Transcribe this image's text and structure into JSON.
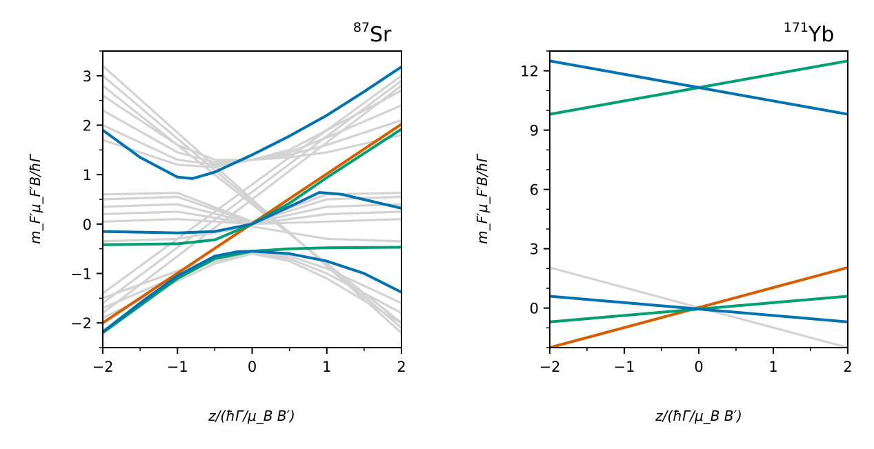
{
  "chart_data": [
    {
      "type": "line",
      "title_superscript": "87",
      "title_element": "Sr",
      "xlabel": "z/(ħΓ/μ_B B′)",
      "ylabel": "m_F′μ_F′B/ħΓ",
      "xlim": [
        -2,
        2
      ],
      "ylim": [
        -2.5,
        3.5
      ],
      "xticks": [
        -2,
        -1,
        0,
        1,
        2
      ],
      "xtick_labels": [
        "−2",
        "−1",
        "0",
        "1",
        "2"
      ],
      "yticks": [
        -2,
        -1,
        0,
        1,
        2,
        3
      ],
      "ytick_labels": [
        "−2",
        "−1",
        "0",
        "1",
        "2",
        "3"
      ],
      "series": [
        {
          "name": "grey-down-1",
          "color": "#d3d3d3",
          "x": [
            -2,
            2
          ],
          "y": [
            3.2,
            -2.2
          ]
        },
        {
          "name": "grey-down-2",
          "color": "#d3d3d3",
          "x": [
            -2,
            2
          ],
          "y": [
            3.0,
            -2.1
          ]
        },
        {
          "name": "grey-down-3",
          "color": "#d3d3d3",
          "x": [
            -2,
            2
          ],
          "y": [
            2.8,
            -2.0
          ]
        },
        {
          "name": "grey-up-1",
          "color": "#d3d3d3",
          "x": [
            -2,
            2
          ],
          "y": [
            -1.4,
            3.0
          ]
        },
        {
          "name": "grey-up-2",
          "color": "#d3d3d3",
          "x": [
            -2,
            2
          ],
          "y": [
            -1.6,
            2.9
          ]
        },
        {
          "name": "grey-up-3",
          "color": "#d3d3d3",
          "x": [
            -2,
            2
          ],
          "y": [
            -1.8,
            2.8
          ]
        },
        {
          "name": "grey-upper-1",
          "color": "#d3d3d3",
          "x": [
            -2,
            -1,
            -0.5,
            0,
            0.5,
            1,
            2
          ],
          "y": [
            2.6,
            1.6,
            1.3,
            1.3,
            1.5,
            1.9,
            2.7
          ]
        },
        {
          "name": "grey-upper-2",
          "color": "#d3d3d3",
          "x": [
            -2,
            -1,
            -0.5,
            0,
            0.5,
            1,
            2
          ],
          "y": [
            2.3,
            1.45,
            1.25,
            1.3,
            1.45,
            1.75,
            2.4
          ]
        },
        {
          "name": "grey-upper-3",
          "color": "#d3d3d3",
          "x": [
            -2,
            -1,
            -0.5,
            0,
            0.5,
            1,
            2
          ],
          "y": [
            2.0,
            1.3,
            1.2,
            1.3,
            1.4,
            1.6,
            2.1
          ]
        },
        {
          "name": "grey-upper-4",
          "color": "#d3d3d3",
          "x": [
            -2,
            -1,
            -0.5,
            0,
            0.5,
            1,
            2
          ],
          "y": [
            1.7,
            1.2,
            1.15,
            1.3,
            1.35,
            1.45,
            1.8
          ]
        },
        {
          "name": "grey-mid-1",
          "color": "#d3d3d3",
          "x": [
            -2,
            -1,
            0,
            1,
            2
          ],
          "y": [
            0.6,
            0.63,
            0.05,
            0.6,
            0.63
          ]
        },
        {
          "name": "grey-mid-2",
          "color": "#d3d3d3",
          "x": [
            -2,
            -1,
            0,
            1,
            2
          ],
          "y": [
            0.5,
            0.55,
            0.03,
            0.5,
            0.55
          ]
        },
        {
          "name": "grey-mid-3",
          "color": "#d3d3d3",
          "x": [
            -2,
            -1,
            0,
            1,
            2
          ],
          "y": [
            0.35,
            0.4,
            0.02,
            0.35,
            0.4
          ]
        },
        {
          "name": "grey-mid-4",
          "color": "#d3d3d3",
          "x": [
            -2,
            -1,
            0,
            1,
            2
          ],
          "y": [
            0.2,
            0.25,
            0.0,
            0.2,
            0.25
          ]
        },
        {
          "name": "grey-mid-5",
          "color": "#d3d3d3",
          "x": [
            -2,
            -1,
            0,
            1,
            2
          ],
          "y": [
            0.05,
            0.1,
            0.0,
            0.05,
            0.1
          ]
        },
        {
          "name": "grey-mid-6",
          "color": "#d3d3d3",
          "x": [
            -2,
            -1,
            0,
            1,
            2
          ],
          "y": [
            -0.35,
            -0.3,
            -0.05,
            -0.3,
            -0.35
          ]
        },
        {
          "name": "grey-lower-1",
          "color": "#d3d3d3",
          "x": [
            -2,
            -1,
            -0.5,
            0,
            0.5,
            1,
            2
          ],
          "y": [
            -1.5,
            -0.95,
            -0.7,
            -0.6,
            -0.65,
            -0.9,
            -1.6
          ]
        },
        {
          "name": "grey-lower-2",
          "color": "#d3d3d3",
          "x": [
            -2,
            -1,
            -0.5,
            0,
            0.5,
            1,
            2
          ],
          "y": [
            -1.7,
            -1.05,
            -0.75,
            -0.6,
            -0.7,
            -1.0,
            -1.8
          ]
        },
        {
          "name": "grey-lower-3",
          "color": "#d3d3d3",
          "x": [
            -2,
            -1,
            -0.5,
            0,
            0.5,
            1,
            2
          ],
          "y": [
            -1.9,
            -1.15,
            -0.8,
            -0.6,
            -0.75,
            -1.1,
            -2.0
          ]
        },
        {
          "name": "orange",
          "color": "#d55e00",
          "x": [
            -2,
            2
          ],
          "y": [
            -2.0,
            2.02
          ]
        },
        {
          "name": "green-diagonal",
          "color": "#009e73",
          "x": [
            -2,
            -1,
            -0.5,
            0,
            0.5,
            1,
            2
          ],
          "y": [
            -0.42,
            -0.4,
            -0.32,
            0.0,
            0.42,
            0.94,
            1.92
          ]
        },
        {
          "name": "green-lower",
          "color": "#009e73",
          "x": [
            -2,
            -1,
            -0.5,
            0,
            0.5,
            1,
            2
          ],
          "y": [
            -2.2,
            -1.1,
            -0.7,
            -0.55,
            -0.5,
            -0.48,
            -0.47
          ]
        },
        {
          "name": "blue-upper",
          "color": "#0072b2",
          "x": [
            -2,
            -1.5,
            -1.0,
            -0.8,
            -0.5,
            0,
            0.5,
            1,
            1.5,
            2
          ],
          "y": [
            1.9,
            1.35,
            0.95,
            0.92,
            1.05,
            1.4,
            1.78,
            2.2,
            2.68,
            3.18
          ]
        },
        {
          "name": "blue-middle",
          "color": "#0072b2",
          "x": [
            -2,
            -1,
            -0.5,
            0,
            0.5,
            0.9,
            1.2,
            2
          ],
          "y": [
            -0.15,
            -0.18,
            -0.15,
            0.0,
            0.35,
            0.64,
            0.6,
            0.32
          ]
        },
        {
          "name": "blue-lower",
          "color": "#0072b2",
          "x": [
            -2,
            -1.5,
            -1,
            -0.5,
            -0.2,
            0,
            0.5,
            1,
            1.5,
            2
          ],
          "y": [
            -2.18,
            -1.6,
            -1.05,
            -0.65,
            -0.56,
            -0.55,
            -0.6,
            -0.75,
            -1.0,
            -1.38
          ]
        }
      ]
    },
    {
      "type": "line",
      "title_superscript": "171",
      "title_element": "Yb",
      "xlabel": "z/(ħΓ/μ_B B′)",
      "ylabel": "m_F′μ_F′B/ħΓ",
      "xlim": [
        -2,
        2
      ],
      "ylim": [
        -2,
        13
      ],
      "xticks": [
        -2,
        -1,
        0,
        1,
        2
      ],
      "xtick_labels": [
        "−2",
        "−1",
        "0",
        "1",
        "2"
      ],
      "yticks": [
        0,
        3,
        6,
        9,
        12
      ],
      "ytick_labels": [
        "0",
        "3",
        "6",
        "9",
        "12"
      ],
      "series": [
        {
          "name": "grey",
          "color": "#d3d3d3",
          "x": [
            -2,
            2
          ],
          "y": [
            2.05,
            -2.0
          ]
        },
        {
          "name": "orange",
          "color": "#d55e00",
          "x": [
            -2,
            2
          ],
          "y": [
            -2.0,
            2.05
          ]
        },
        {
          "name": "green-lower",
          "color": "#009e73",
          "x": [
            -2,
            2
          ],
          "y": [
            -0.7,
            0.6
          ]
        },
        {
          "name": "blue-lower",
          "color": "#0072b2",
          "x": [
            -2,
            2
          ],
          "y": [
            0.6,
            -0.7
          ]
        },
        {
          "name": "green-upper",
          "color": "#009e73",
          "x": [
            -2,
            2
          ],
          "y": [
            9.8,
            12.5
          ]
        },
        {
          "name": "blue-upper",
          "color": "#0072b2",
          "x": [
            -2,
            2
          ],
          "y": [
            12.5,
            9.8
          ]
        }
      ]
    }
  ]
}
